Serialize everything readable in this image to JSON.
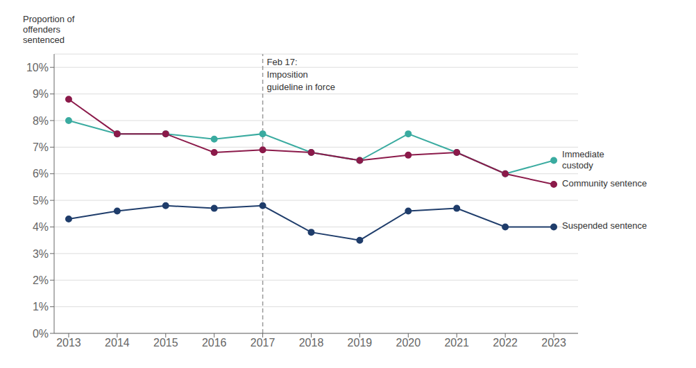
{
  "chart_data": {
    "type": "line",
    "ylabel": "Proportion of\noffenders\nsentenced",
    "x": [
      2013,
      2014,
      2015,
      2016,
      2017,
      2018,
      2019,
      2020,
      2021,
      2022,
      2023
    ],
    "series": [
      {
        "name": "Immediate\ncustody",
        "color": "#3aaba0",
        "marker": "circle",
        "values": [
          0.08,
          0.075,
          0.075,
          0.073,
          0.075,
          0.068,
          0.065,
          0.075,
          0.068,
          0.06,
          0.065
        ]
      },
      {
        "name": "Community sentence",
        "color": "#8b1a4a",
        "marker": "circle",
        "values": [
          0.088,
          0.075,
          0.075,
          0.068,
          0.069,
          0.068,
          0.065,
          0.067,
          0.068,
          0.06,
          0.056
        ]
      },
      {
        "name": "Suspended sentence",
        "color": "#1f3d6b",
        "marker": "circle",
        "values": [
          0.043,
          0.046,
          0.048,
          0.047,
          0.048,
          0.038,
          0.035,
          0.046,
          0.047,
          0.04,
          0.04
        ]
      }
    ],
    "xlim": [
      2012.7,
      2023.5
    ],
    "xticks": [
      2013,
      2014,
      2015,
      2016,
      2017,
      2018,
      2019,
      2020,
      2021,
      2022,
      2023
    ],
    "ylim": [
      0.0,
      0.105
    ],
    "yticks": [
      {
        "value": 0.0,
        "label": "0%"
      },
      {
        "value": 0.01,
        "label": "1%"
      },
      {
        "value": 0.02,
        "label": "2%"
      },
      {
        "value": 0.03,
        "label": "3%"
      },
      {
        "value": 0.04,
        "label": "4%"
      },
      {
        "value": 0.05,
        "label": "5%"
      },
      {
        "value": 0.06,
        "label": "6%"
      },
      {
        "value": 0.07,
        "label": "7%"
      },
      {
        "value": 0.08,
        "label": "8%"
      },
      {
        "value": 0.09,
        "label": "9%"
      },
      {
        "value": 0.1,
        "label": "10%"
      }
    ],
    "annotations": [
      {
        "x": 2017,
        "text": "Feb 17:\nImposition\nguideline in force"
      }
    ],
    "grid": true
  }
}
